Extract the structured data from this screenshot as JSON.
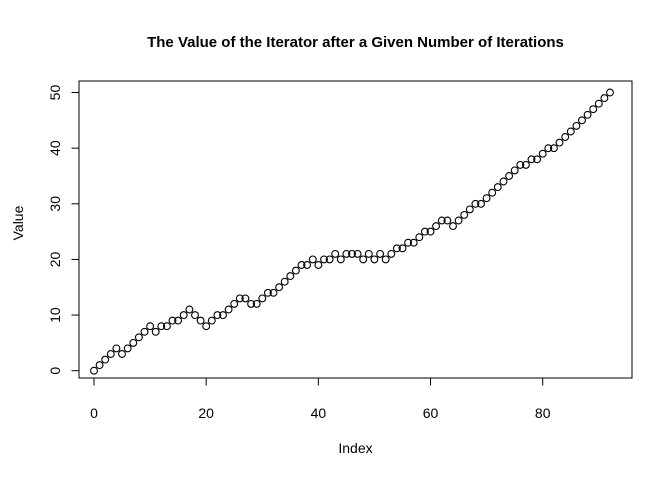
{
  "chart_data": {
    "type": "scatter",
    "title": "The Value of the Iterator after a Given Number of Iterations",
    "xlabel": "Index",
    "ylabel": "Value",
    "marker": "open-circle",
    "point_color": "#000000",
    "background_color": "#ffffff",
    "grid": "off",
    "legend": "none",
    "x_ticks": [
      0,
      20,
      40,
      60,
      80
    ],
    "y_ticks": [
      0,
      10,
      20,
      30,
      40,
      50
    ],
    "xlim": [
      -2.7,
      95.9
    ],
    "ylim": [
      -1.3,
      52.1
    ],
    "x": [
      0,
      1,
      2,
      3,
      4,
      5,
      6,
      7,
      8,
      9,
      10,
      11,
      12,
      13,
      14,
      15,
      16,
      17,
      18,
      19,
      20,
      21,
      22,
      23,
      24,
      25,
      26,
      27,
      28,
      29,
      30,
      31,
      32,
      33,
      34,
      35,
      36,
      37,
      38,
      39,
      40,
      41,
      42,
      43,
      44,
      45,
      46,
      47,
      48,
      49,
      50,
      51,
      52,
      53,
      54,
      55,
      56,
      57,
      58,
      59,
      60,
      61,
      62,
      63,
      64,
      65,
      66,
      67,
      68,
      69,
      70,
      71,
      72,
      73,
      74,
      75,
      76,
      77,
      78,
      79,
      80,
      81,
      82,
      83,
      84,
      85,
      86,
      87,
      88,
      89,
      90,
      91,
      92
    ],
    "values": [
      0,
      1,
      2,
      3,
      4,
      3,
      4,
      5,
      6,
      7,
      8,
      7,
      8,
      8,
      9,
      9,
      10,
      11,
      10,
      9,
      8,
      9,
      10,
      10,
      11,
      12,
      13,
      13,
      12,
      12,
      13,
      14,
      14,
      15,
      16,
      17,
      18,
      19,
      19,
      20,
      19,
      20,
      20,
      21,
      20,
      21,
      21,
      21,
      20,
      21,
      20,
      21,
      20,
      21,
      22,
      22,
      23,
      23,
      24,
      25,
      25,
      26,
      27,
      27,
      26,
      27,
      28,
      29,
      30,
      30,
      31,
      32,
      33,
      34,
      35,
      36,
      37,
      37,
      38,
      38,
      39,
      40,
      40,
      41,
      42,
      43,
      44,
      45,
      46,
      47,
      48,
      49,
      50
    ]
  }
}
